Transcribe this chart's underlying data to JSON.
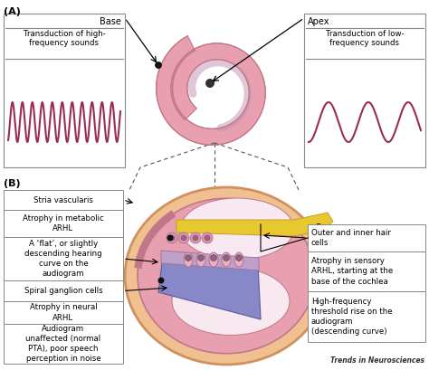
{
  "background_color": "#ffffff",
  "label_A": "(A)",
  "label_B": "(B)",
  "label_base": "Base",
  "label_apex": "Apex",
  "label_high_freq": "Transduction of high-\nfrequency sounds",
  "label_low_freq": "Transduction of low-\nfrequency sounds",
  "label_stria": "Stria vascularis",
  "label_metabolic": "Atrophy in metabolic\nARHL",
  "label_flat": "A ‘flat’, or slightly\ndescending hearing\ncurve on the\naudiogram",
  "label_spiral": "Spiral ganglion cells",
  "label_neural": "Atrophy in neural\nARHL",
  "label_audiogram": "Audiogram\nunaffected (normal\nPTA), poor speech\nperception in noise",
  "label_outer": "Outer and inner hair\ncells",
  "label_sensory": "Atrophy in sensory\nARHL, starting at the\nbase of the cochlea",
  "label_highfreq_rise": "High-frequency\nthreshold rise on the\naudiogram\n(descending curve)",
  "label_trends": "Trends in Neurosciences",
  "wave_color": "#9b2d4e",
  "arrow_color": "#000000",
  "dashed_color": "#555555",
  "font_size_small": 6.2,
  "font_size_label": 7.0,
  "font_size_section": 8.0
}
